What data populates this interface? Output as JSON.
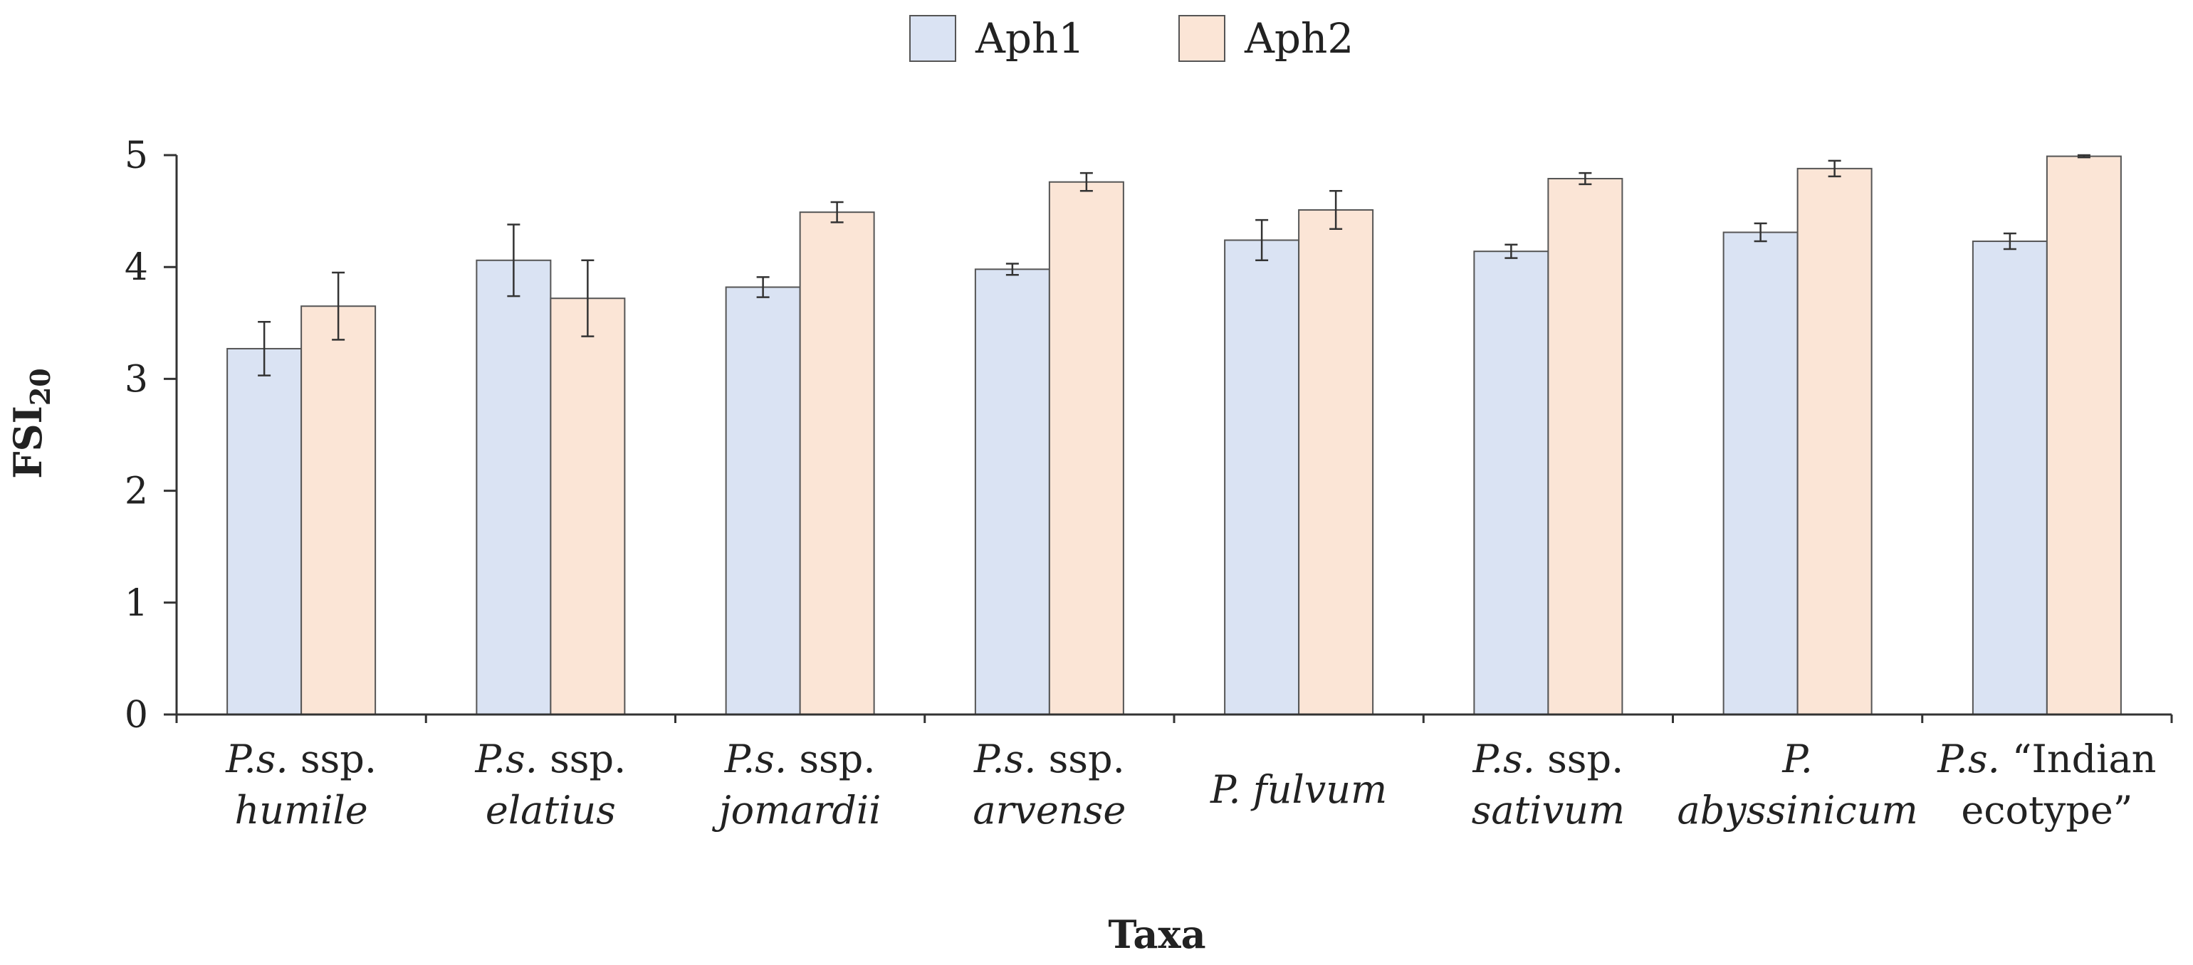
{
  "chart_data": {
    "type": "bar",
    "title": "",
    "xlabel": "Taxa",
    "ylabel": {
      "main": "FSI",
      "sub": "20"
    },
    "ylim": [
      0,
      5
    ],
    "yticks": [
      "0",
      "1",
      "2",
      "3",
      "4",
      "5"
    ],
    "grid": false,
    "legend_position": "top-center",
    "categories": [
      {
        "lines": [
          [
            {
              "t": "P.s.",
              "i": true
            },
            {
              "t": " ssp.",
              "i": false
            }
          ],
          [
            {
              "t": "humile",
              "i": true
            }
          ]
        ]
      },
      {
        "lines": [
          [
            {
              "t": "P.s.",
              "i": true
            },
            {
              "t": " ssp.",
              "i": false
            }
          ],
          [
            {
              "t": "elatius",
              "i": true
            }
          ]
        ]
      },
      {
        "lines": [
          [
            {
              "t": "P.s.",
              "i": true
            },
            {
              "t": " ssp.",
              "i": false
            }
          ],
          [
            {
              "t": "jomardii",
              "i": true
            }
          ]
        ]
      },
      {
        "lines": [
          [
            {
              "t": "P.s.",
              "i": true
            },
            {
              "t": " ssp.",
              "i": false
            }
          ],
          [
            {
              "t": "arvense",
              "i": true
            }
          ]
        ]
      },
      {
        "lines": [
          [
            {
              "t": "P. fulvum",
              "i": true
            }
          ]
        ]
      },
      {
        "lines": [
          [
            {
              "t": "P.s.",
              "i": true
            },
            {
              "t": " ssp.",
              "i": false
            }
          ],
          [
            {
              "t": "sativum",
              "i": true
            }
          ]
        ]
      },
      {
        "lines": [
          [
            {
              "t": "P.",
              "i": true
            }
          ],
          [
            {
              "t": "abyssinicum",
              "i": true
            }
          ]
        ]
      },
      {
        "lines": [
          [
            {
              "t": "P.s.",
              "i": true
            },
            {
              "t": " “Indian",
              "i": false
            }
          ],
          [
            {
              "t": "ecotype”",
              "i": false
            }
          ]
        ]
      }
    ],
    "series": [
      {
        "name": "Aph1",
        "color": "#dae3f3",
        "values": [
          3.27,
          4.06,
          3.82,
          3.98,
          4.24,
          4.14,
          4.31,
          4.23
        ],
        "errors": [
          0.24,
          0.32,
          0.09,
          0.05,
          0.18,
          0.06,
          0.08,
          0.07
        ]
      },
      {
        "name": "Aph2",
        "color": "#fbe5d6",
        "values": [
          3.65,
          3.72,
          4.49,
          4.76,
          4.51,
          4.79,
          4.88,
          4.99
        ],
        "errors": [
          0.3,
          0.34,
          0.09,
          0.08,
          0.17,
          0.05,
          0.07,
          0.01
        ]
      }
    ]
  }
}
